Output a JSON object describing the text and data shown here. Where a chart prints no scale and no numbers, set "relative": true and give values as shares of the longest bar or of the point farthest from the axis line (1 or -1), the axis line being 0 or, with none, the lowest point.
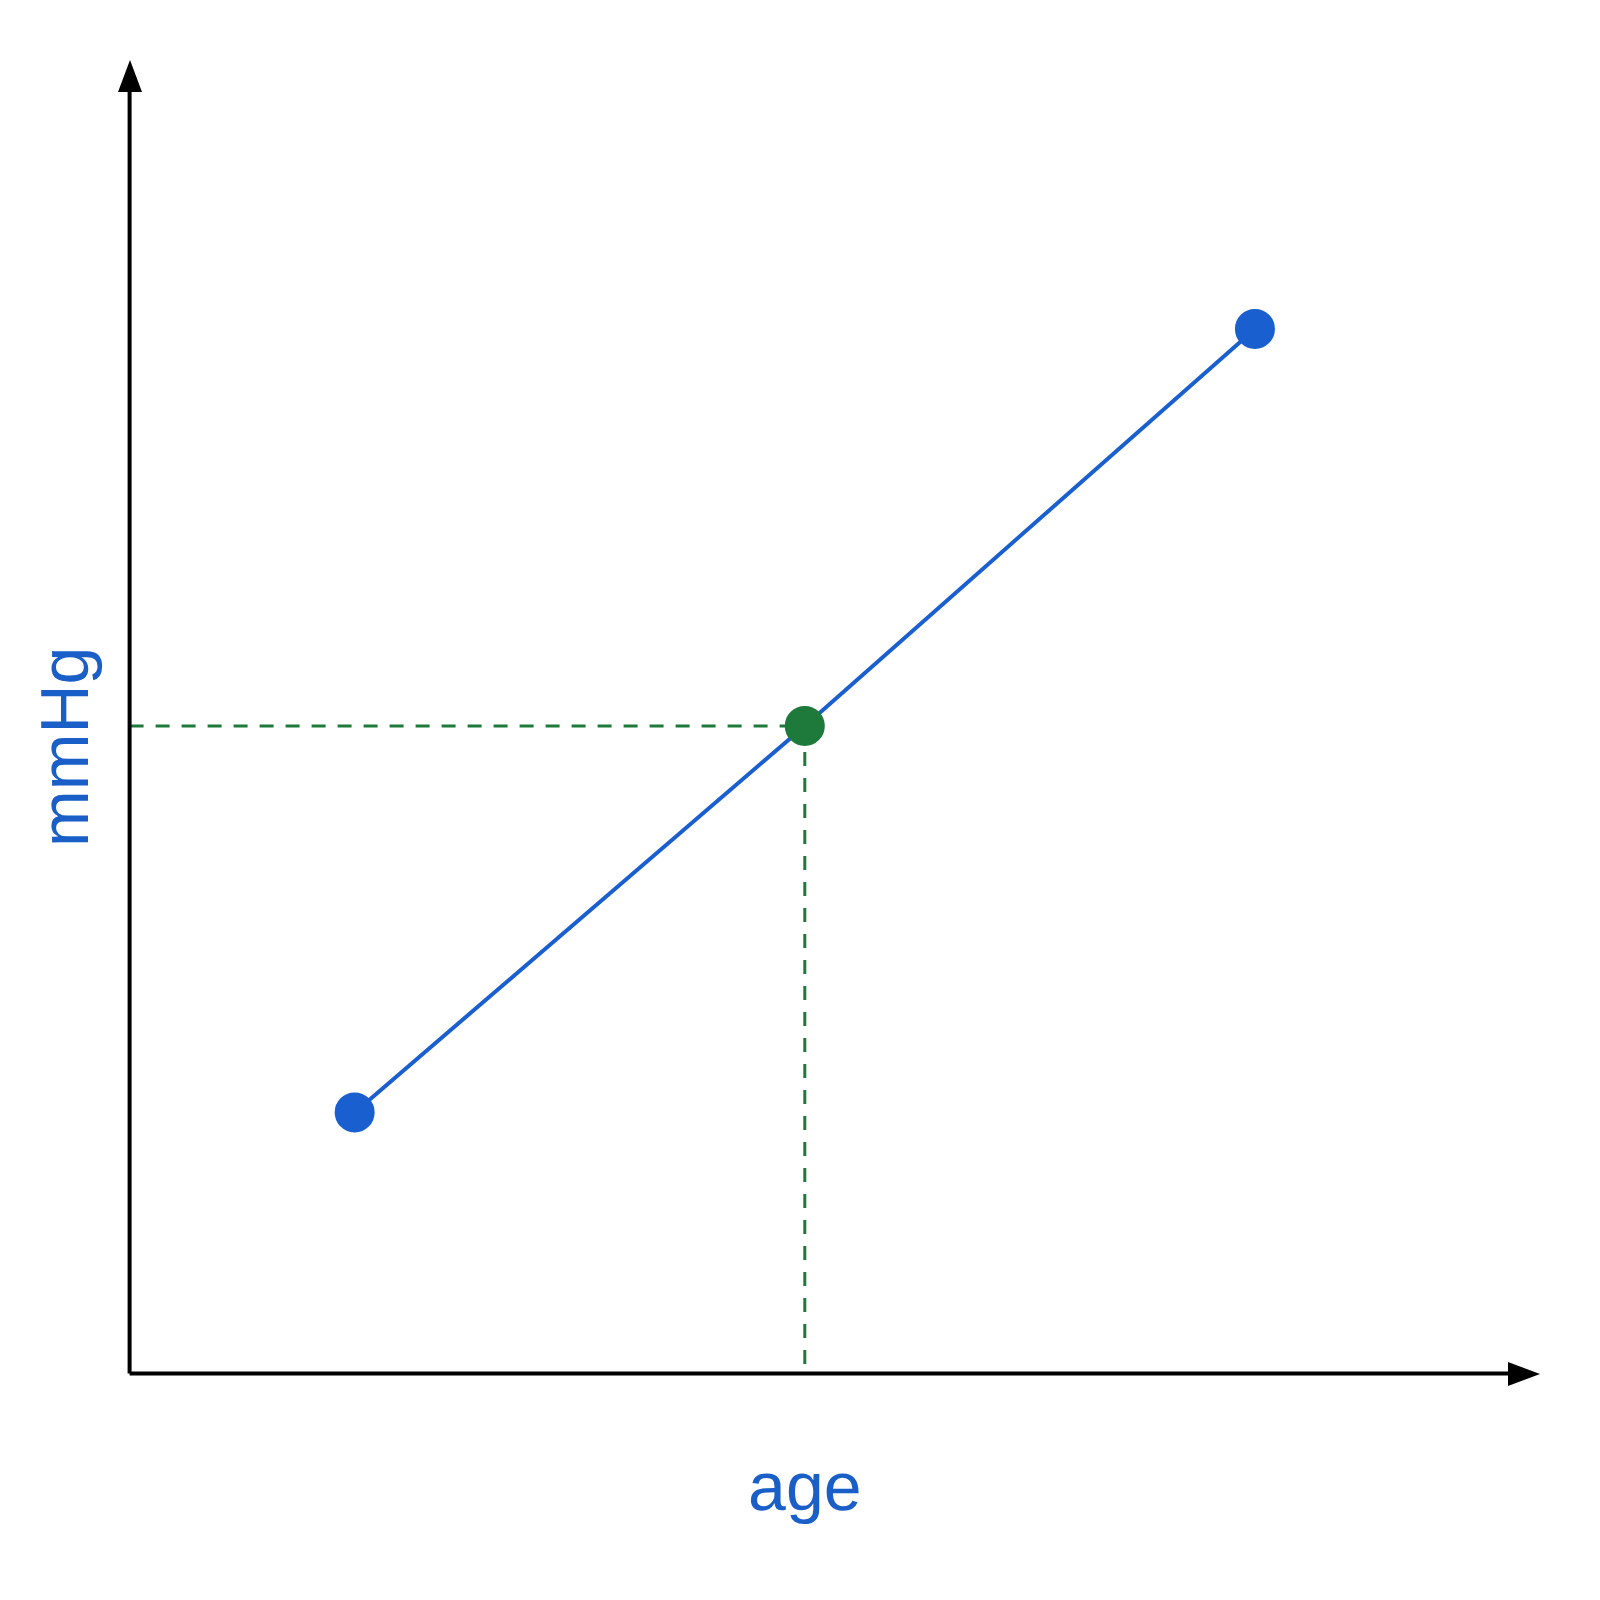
{
  "chart_data": {
    "type": "line",
    "relative": true,
    "xlabel": "age",
    "ylabel": "mmHg",
    "categories": [
      null,
      null,
      null
    ],
    "series": [
      {
        "color": "#1a5fd0",
        "colors": [
          "#1a5fd0",
          "#1e7a3a",
          "#1a5fd0"
        ],
        "values": [
          0.25,
          0.62,
          1
        ]
      }
    ],
    "ref_lines": [
      {
        "axis": "y",
        "value": 0.62,
        "color": "#1e7a3a",
        "line_style": "dashed"
      }
    ],
    "marker": "circle",
    "line_style": "solid",
    "grid": false,
    "legend": false
  }
}
